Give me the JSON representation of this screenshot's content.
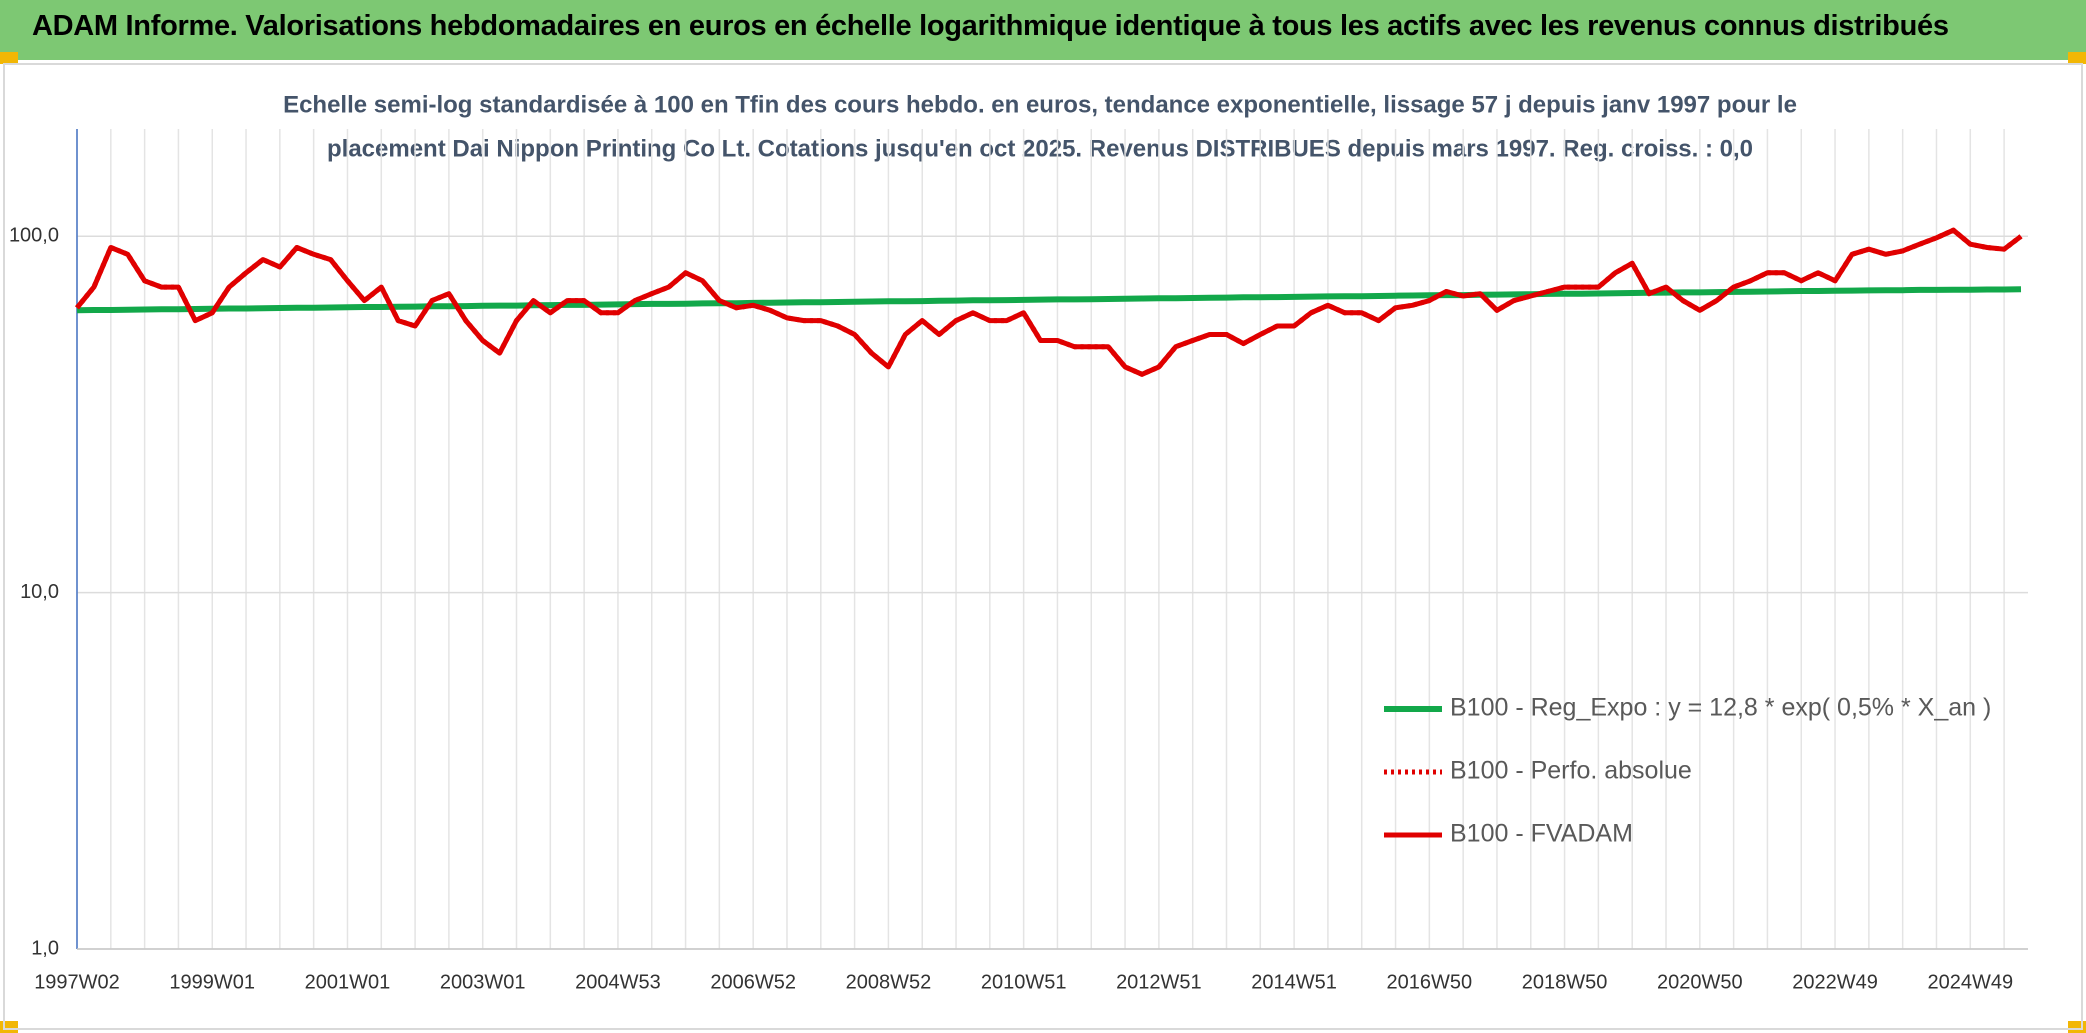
{
  "header": {
    "title": "ADAM Informe. Valorisations hebdomadaires en euros en échelle logarithmique identique à tous les actifs avec les revenus connus distribués"
  },
  "chart_data": {
    "type": "line",
    "subtitle_lines": [
      "Echelle semi-log standardisée à 100 en Tfin des cours hebdo. en euros, tendance exponentielle, lissage 57 j depuis janv 1997 pour le",
      "placement Dai Nippon Printing Co Lt. Cotations jusqu'en oct 2025. Revenus DISTRIBUES depuis mars 1997. Reg. croiss. : 0,0"
    ],
    "log_scale": true,
    "grid": true,
    "legend": "lower right",
    "ylim": [
      1,
      200
    ],
    "yticks": [
      {
        "value": 1,
        "label": "1,0"
      },
      {
        "value": 10,
        "label": "10,0"
      },
      {
        "value": 100,
        "label": "100,0"
      }
    ],
    "categories": [
      "1997W02",
      null,
      null,
      null,
      null,
      null,
      null,
      null,
      "1999W01",
      null,
      null,
      null,
      null,
      null,
      null,
      null,
      "2001W01",
      null,
      null,
      null,
      null,
      null,
      null,
      null,
      "2003W01",
      null,
      null,
      null,
      null,
      null,
      null,
      null,
      "2004W53",
      null,
      null,
      null,
      null,
      null,
      null,
      null,
      "2006W52",
      null,
      null,
      null,
      null,
      null,
      null,
      null,
      "2008W52",
      null,
      null,
      null,
      null,
      null,
      null,
      null,
      "2010W51",
      null,
      null,
      null,
      null,
      null,
      null,
      null,
      "2012W51",
      null,
      null,
      null,
      null,
      null,
      null,
      null,
      "2014W51",
      null,
      null,
      null,
      null,
      null,
      null,
      null,
      "2016W50",
      null,
      null,
      null,
      null,
      null,
      null,
      null,
      "2018W50",
      null,
      null,
      null,
      null,
      null,
      null,
      null,
      "2020W50",
      null,
      null,
      null,
      null,
      null,
      null,
      null,
      "2022W49",
      null,
      null,
      null,
      null,
      null,
      null,
      null,
      "2024W49",
      null,
      null,
      null
    ],
    "series": [
      {
        "name": "B100 - Reg_Expo : y = 12,8 * exp( 0,5% *  X_an )",
        "color": "#12a84a",
        "style": "solid",
        "values": [
          62.0,
          62.1,
          62.1,
          62.2,
          62.3,
          62.4,
          62.4,
          62.5,
          62.6,
          62.7,
          62.7,
          62.8,
          62.9,
          63.0,
          63.0,
          63.1,
          63.2,
          63.3,
          63.3,
          63.4,
          63.5,
          63.6,
          63.6,
          63.7,
          63.8,
          63.9,
          63.9,
          64.0,
          64.1,
          64.2,
          64.2,
          64.3,
          64.4,
          64.5,
          64.6,
          64.6,
          64.7,
          64.8,
          64.9,
          64.9,
          65.0,
          65.1,
          65.2,
          65.3,
          65.3,
          65.4,
          65.5,
          65.6,
          65.7,
          65.7,
          65.8,
          65.9,
          66.0,
          66.1,
          66.1,
          66.2,
          66.3,
          66.4,
          66.5,
          66.5,
          66.6,
          66.7,
          66.8,
          66.9,
          67.0,
          67.0,
          67.1,
          67.2,
          67.3,
          67.4,
          67.4,
          67.5,
          67.6,
          67.7,
          67.8,
          67.9,
          67.9,
          68.0,
          68.1,
          68.2,
          68.3,
          68.4,
          68.4,
          68.5,
          68.6,
          68.7,
          68.8,
          68.9,
          69.0,
          69.0,
          69.1,
          69.2,
          69.3,
          69.4,
          69.5,
          69.6,
          69.6,
          69.7,
          69.8,
          69.9,
          70.0,
          70.1,
          70.2,
          70.2,
          70.3,
          70.4,
          70.5,
          70.6,
          70.6,
          70.7,
          70.7,
          70.8,
          70.8,
          70.9,
          70.9,
          71.0
        ]
      },
      {
        "name": "B100 - Perfo. absolue",
        "color": "#e00000",
        "style": "dotted",
        "values": [
          63,
          72,
          93,
          89,
          75,
          72,
          72,
          58,
          61,
          72,
          79,
          86,
          82,
          93,
          89,
          86,
          75,
          66,
          72,
          58,
          56,
          66,
          69,
          58,
          51,
          47,
          58,
          66,
          61,
          66,
          66,
          61,
          61,
          66,
          69,
          72,
          79,
          75,
          66,
          63,
          64,
          62,
          59,
          58,
          58,
          56,
          53,
          47,
          43,
          53,
          58,
          53,
          58,
          61,
          58,
          58,
          61,
          51,
          51,
          49,
          49,
          49,
          43,
          41,
          43,
          49,
          51,
          53,
          53,
          50,
          53,
          56,
          56,
          61,
          64,
          61,
          61,
          58,
          63,
          64,
          66,
          70,
          68,
          69,
          62,
          66,
          68,
          70,
          72,
          72,
          72,
          79,
          84,
          69,
          72,
          66,
          62,
          66,
          72,
          75,
          79,
          79,
          75,
          79,
          75,
          89,
          92,
          89,
          91,
          95,
          99,
          104,
          95,
          93,
          92,
          100
        ]
      },
      {
        "name": "B100 - FVADAM",
        "color": "#e00000",
        "style": "solid",
        "values": [
          63,
          72,
          93,
          89,
          75,
          72,
          72,
          58,
          61,
          72,
          79,
          86,
          82,
          93,
          89,
          86,
          75,
          66,
          72,
          58,
          56,
          66,
          69,
          58,
          51,
          47,
          58,
          66,
          61,
          66,
          66,
          61,
          61,
          66,
          69,
          72,
          79,
          75,
          66,
          63,
          64,
          62,
          59,
          58,
          58,
          56,
          53,
          47,
          43,
          53,
          58,
          53,
          58,
          61,
          58,
          58,
          61,
          51,
          51,
          49,
          49,
          49,
          43,
          41,
          43,
          49,
          51,
          53,
          53,
          50,
          53,
          56,
          56,
          61,
          64,
          61,
          61,
          58,
          63,
          64,
          66,
          70,
          68,
          69,
          62,
          66,
          68,
          70,
          72,
          72,
          72,
          79,
          84,
          69,
          72,
          66,
          62,
          66,
          72,
          75,
          79,
          79,
          75,
          79,
          75,
          89,
          92,
          89,
          91,
          95,
          99,
          104,
          95,
          93,
          92,
          100
        ]
      }
    ]
  }
}
